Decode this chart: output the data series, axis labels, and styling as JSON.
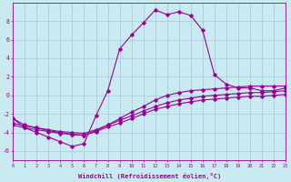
{
  "xlabel": "Windchill (Refroidissement éolien,°C)",
  "background_color": "#c8eaf0",
  "line_color": "#990099",
  "grid_color": "#aaccdd",
  "hours": [
    0,
    1,
    2,
    3,
    4,
    5,
    6,
    7,
    8,
    9,
    10,
    11,
    12,
    13,
    14,
    15,
    16,
    17,
    18,
    19,
    20,
    21,
    22,
    23
  ],
  "temp": [
    -2.5,
    -3.5,
    -4.0,
    -4.5,
    -5.0,
    -5.5,
    -5.2,
    -2.2,
    0.5,
    5.0,
    6.5,
    7.8,
    9.2,
    8.7,
    9.0,
    8.6,
    7.0,
    2.2,
    1.2,
    0.8,
    0.8,
    0.5,
    0.5,
    0.8
  ],
  "line2": [
    -2.5,
    -3.2,
    -3.5,
    -3.8,
    -4.0,
    -4.2,
    -4.3,
    -3.8,
    -3.2,
    -2.5,
    -1.8,
    -1.2,
    -0.5,
    0.0,
    0.3,
    0.5,
    0.6,
    0.7,
    0.8,
    0.9,
    1.0,
    1.0,
    1.0,
    1.0
  ],
  "line3": [
    -3.0,
    -3.3,
    -3.5,
    -3.7,
    -3.9,
    -4.0,
    -4.1,
    -3.7,
    -3.2,
    -2.7,
    -2.2,
    -1.7,
    -1.2,
    -0.8,
    -0.5,
    -0.3,
    -0.1,
    0.0,
    0.1,
    0.2,
    0.3,
    0.3,
    0.4,
    0.5
  ],
  "line4": [
    -3.2,
    -3.5,
    -3.7,
    -3.9,
    -4.1,
    -4.2,
    -4.3,
    -3.9,
    -3.4,
    -3.0,
    -2.5,
    -2.0,
    -1.5,
    -1.2,
    -0.9,
    -0.7,
    -0.5,
    -0.4,
    -0.3,
    -0.2,
    -0.1,
    -0.1,
    0.0,
    0.1
  ],
  "ylim": [
    -7,
    10
  ],
  "yticks": [
    -6,
    -4,
    -2,
    0,
    2,
    4,
    6,
    8
  ],
  "xlim": [
    0,
    23
  ]
}
